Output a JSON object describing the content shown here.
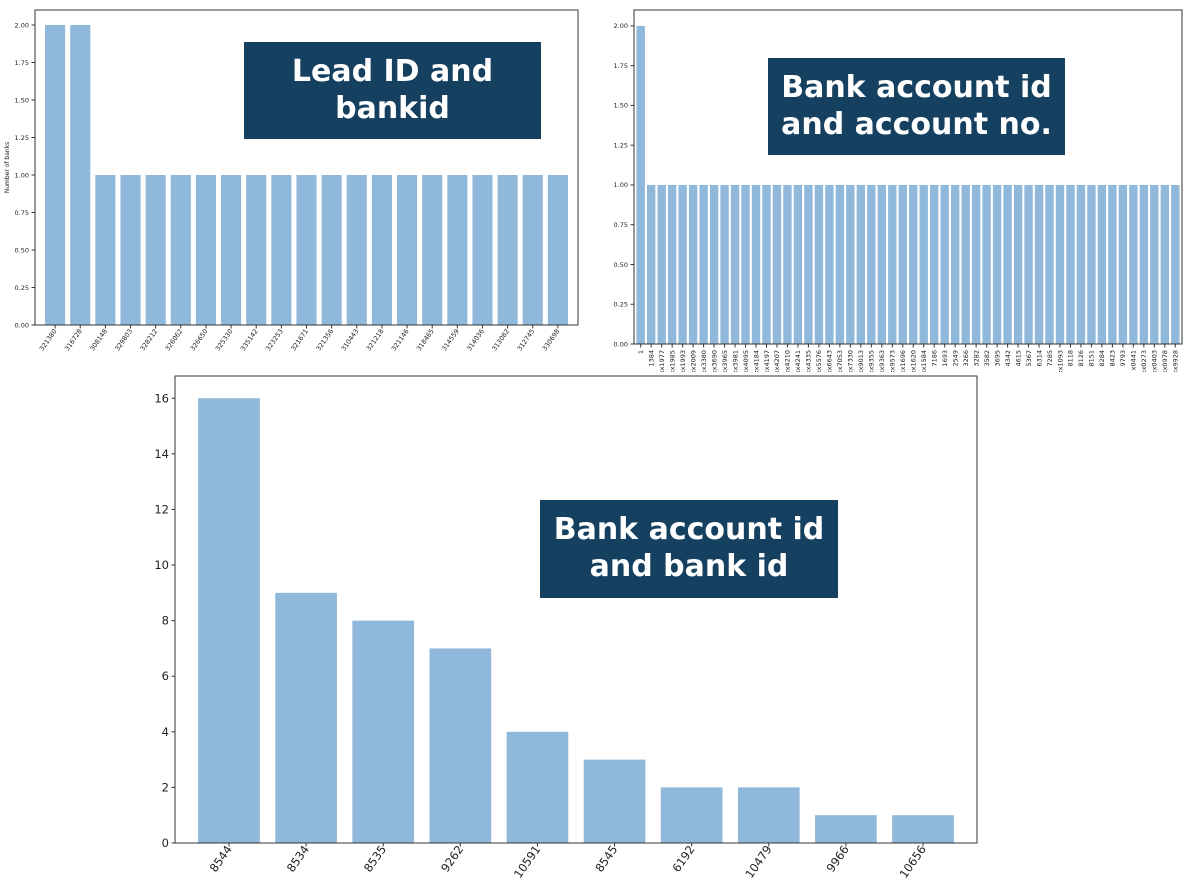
{
  "colors": {
    "bar": "#8fb8da",
    "badge_bg": "#16405f",
    "badge_text": "#ffffff"
  },
  "badges": {
    "lead_bank": "Lead ID and\nbankid",
    "account_no": "Bank account id\nand account no.",
    "account_bank": "Bank account id\nand bank id"
  },
  "chart_data": [
    {
      "type": "bar",
      "title": "",
      "xlabel": "",
      "ylabel": "Number of banks",
      "ylim": [
        0,
        2.1
      ],
      "yticks": [
        "0.00",
        "0.25",
        "0.50",
        "0.75",
        "1.00",
        "1.25",
        "1.50",
        "1.75",
        "2.00"
      ],
      "categories": [
        "321380",
        "316728",
        "308148",
        "329803",
        "328212",
        "326062",
        "326650",
        "325330",
        "335142",
        "323253",
        "321671",
        "321356",
        "310443",
        "321218",
        "321146",
        "318465",
        "314559",
        "314036",
        "313082",
        "312745",
        "330698"
      ],
      "values": [
        2,
        2,
        1,
        1,
        1,
        1,
        1,
        1,
        1,
        1,
        1,
        1,
        1,
        1,
        1,
        1,
        1,
        1,
        1,
        1,
        1
      ]
    },
    {
      "type": "bar",
      "title": "",
      "xlabel": "",
      "ylabel": "",
      "ylim": [
        0,
        2.1
      ],
      "yticks": [
        "0.00",
        "0.25",
        "0.50",
        "0.75",
        "1.00",
        "1.25",
        "1.50",
        "1.75",
        "2.00"
      ],
      "categories": [
        "1",
        "1384",
        "xx1977",
        "xx1985",
        "xx1993",
        "xx2009",
        "xx3380",
        "xx3690",
        "xx3965",
        "xx3981",
        "xx4095",
        "xx4184",
        "xx4197",
        "xx4207",
        "xx4210",
        "xx4241",
        "xx4335",
        "xx5576",
        "xx6643",
        "xx7053",
        "xx7330",
        "xx9013",
        "xx9355",
        "xx9363",
        "xx9573",
        "xx1696",
        "xx1620",
        "xx1584",
        "7186",
        "1693",
        "2549",
        "3266",
        "3282",
        "3582",
        "3695",
        "4342",
        "4615",
        "5367",
        "6314",
        "7285",
        "xx1093",
        "8118",
        "8126",
        "8151",
        "8284",
        "8423",
        "9793",
        "x0441",
        "xx0273",
        "xx0403",
        "xx0978",
        "xx9928"
      ],
      "values": [
        2,
        1,
        1,
        1,
        1,
        1,
        1,
        1,
        1,
        1,
        1,
        1,
        1,
        1,
        1,
        1,
        1,
        1,
        1,
        1,
        1,
        1,
        1,
        1,
        1,
        1,
        1,
        1,
        1,
        1,
        1,
        1,
        1,
        1,
        1,
        1,
        1,
        1,
        1,
        1,
        1,
        1,
        1,
        1,
        1,
        1,
        1,
        1,
        1,
        1,
        1,
        1
      ]
    },
    {
      "type": "bar",
      "title": "",
      "xlabel": "",
      "ylabel": "",
      "ylim": [
        0,
        16.8
      ],
      "yticks": [
        "0",
        "2",
        "4",
        "6",
        "8",
        "10",
        "12",
        "14",
        "16"
      ],
      "categories": [
        "8544",
        "8534",
        "8535",
        "9262",
        "10591",
        "8545",
        "6192",
        "10479",
        "9966",
        "10656"
      ],
      "values": [
        16,
        9,
        8,
        7,
        4,
        3,
        2,
        2,
        1,
        1
      ]
    }
  ]
}
